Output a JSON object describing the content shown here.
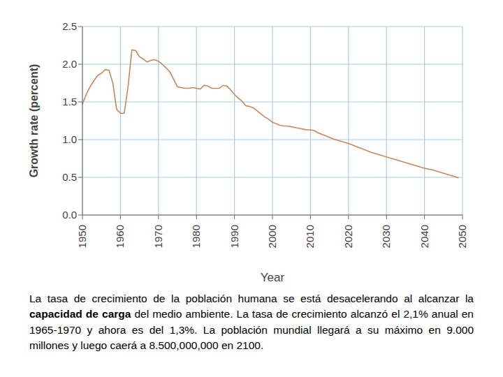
{
  "chart_data": {
    "type": "line",
    "x_label": "Year",
    "y_label": "Growth rate (percent)",
    "x": [
      1950,
      1951,
      1952,
      1953,
      1954,
      1955,
      1956,
      1957,
      1958,
      1959,
      1960,
      1961,
      1962,
      1963,
      1964,
      1965,
      1966,
      1967,
      1968,
      1969,
      1970,
      1971,
      1972,
      1973,
      1974,
      1975,
      1976,
      1977,
      1978,
      1979,
      1980,
      1981,
      1982,
      1983,
      1984,
      1985,
      1986,
      1987,
      1988,
      1989,
      1990,
      1991,
      1992,
      1993,
      1994,
      1995,
      1996,
      1997,
      1998,
      1999,
      2000,
      2001,
      2002,
      2003,
      2004,
      2005,
      2006,
      2007,
      2008,
      2009,
      2010,
      2011,
      2012,
      2014,
      2016,
      2018,
      2020,
      2022,
      2024,
      2026,
      2028,
      2030,
      2032,
      2034,
      2036,
      2038,
      2040,
      2042,
      2044,
      2046,
      2048,
      2049
    ],
    "values": [
      1.47,
      1.6,
      1.7,
      1.78,
      1.85,
      1.88,
      1.93,
      1.92,
      1.75,
      1.4,
      1.35,
      1.35,
      1.7,
      2.19,
      2.18,
      2.1,
      2.07,
      2.03,
      2.05,
      2.06,
      2.04,
      2.0,
      1.95,
      1.9,
      1.8,
      1.7,
      1.69,
      1.68,
      1.68,
      1.69,
      1.68,
      1.67,
      1.72,
      1.71,
      1.68,
      1.68,
      1.68,
      1.72,
      1.71,
      1.66,
      1.6,
      1.55,
      1.51,
      1.45,
      1.44,
      1.42,
      1.38,
      1.34,
      1.3,
      1.27,
      1.23,
      1.21,
      1.19,
      1.18,
      1.18,
      1.17,
      1.16,
      1.15,
      1.14,
      1.13,
      1.13,
      1.12,
      1.09,
      1.05,
      1.01,
      0.98,
      0.95,
      0.91,
      0.87,
      0.83,
      0.8,
      0.77,
      0.74,
      0.71,
      0.68,
      0.65,
      0.62,
      0.6,
      0.57,
      0.54,
      0.51,
      0.49
    ],
    "color": "#c8875a",
    "xlim": [
      1950,
      2050
    ],
    "xticks": [
      1950,
      1960,
      1970,
      1980,
      1990,
      2000,
      2010,
      2020,
      2030,
      2040,
      2050
    ],
    "ylim": [
      0,
      2.5
    ],
    "yticks": [
      {
        "value": 0,
        "label": "0.0"
      },
      {
        "value": 0.5,
        "label": "0.5"
      },
      {
        "value": 1,
        "label": "1.0"
      },
      {
        "value": 1.5,
        "label": "1.5"
      },
      {
        "value": 2,
        "label": "2.0"
      },
      {
        "value": 2.5,
        "label": "2.5"
      }
    ],
    "grid": true,
    "caption": {
      "before": "La tasa de crecimiento de la población humana se está desacelerando al alcanzar la ",
      "bold": "capacidad de carga",
      "after": " del medio ambiente. La tasa de crecimiento alcanzó el 2,1% anual en 1965-1970 y ahora es del 1,3%. La población mundial llegará a su máximo en 9.000 millones y luego caerá a 8.500,000,000 en 2100."
    }
  }
}
